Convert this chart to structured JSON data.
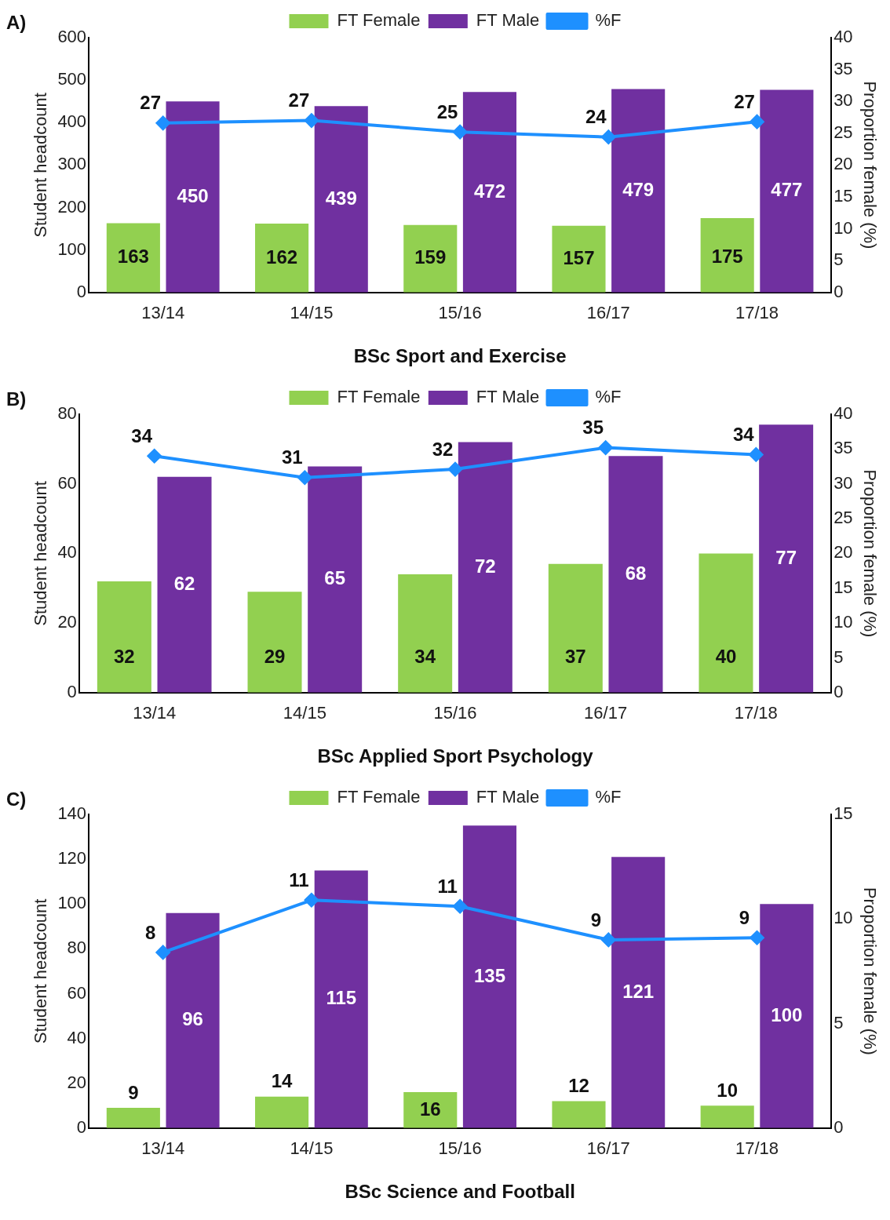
{
  "chart_data": [
    {
      "type": "bar",
      "annotations": [
        "A)"
      ],
      "xlabel": "BSc Sport and Exercise",
      "ylabel": "Student headcount",
      "y2label": "Proportion female (%)",
      "categories": [
        "13/14",
        "14/15",
        "15/16",
        "16/17",
        "17/18"
      ],
      "ylim": [
        0,
        600
      ],
      "yticks": [
        0,
        100,
        200,
        300,
        400,
        500,
        600
      ],
      "y2lim": [
        0,
        40
      ],
      "y2ticks": [
        0,
        5,
        10,
        15,
        20,
        25,
        30,
        35,
        40
      ],
      "data_labels": true,
      "legend": "top",
      "grid": false,
      "marker": "diamond",
      "line_style": "solid",
      "series": [
        {
          "name": "FT Female",
          "color": "#92d050",
          "values": [
            163,
            162,
            159,
            157,
            175
          ]
        },
        {
          "name": "FT Male",
          "color": "#7030a0",
          "values": [
            450,
            439,
            472,
            479,
            477
          ]
        },
        {
          "name": "%F",
          "type": "line",
          "axis": "y2",
          "color": "#1e90ff",
          "values": [
            26.6,
            27.0,
            25.2,
            24.4,
            26.8
          ],
          "value_labels": [
            "27",
            "27",
            "25",
            "24",
            "27"
          ]
        }
      ]
    },
    {
      "type": "bar",
      "annotations": [
        "B)"
      ],
      "xlabel": "BSc Applied Sport Psychology",
      "ylabel": "Student headcount",
      "y2label": "Proportion female (%)",
      "categories": [
        "13/14",
        "14/15",
        "15/16",
        "16/17",
        "17/18"
      ],
      "ylim": [
        0,
        80
      ],
      "yticks": [
        0,
        20,
        40,
        60,
        80
      ],
      "y2lim": [
        0,
        40
      ],
      "y2ticks": [
        0,
        5,
        10,
        15,
        20,
        25,
        30,
        35,
        40
      ],
      "data_labels": true,
      "legend": "top",
      "grid": false,
      "marker": "diamond",
      "line_style": "solid",
      "series": [
        {
          "name": "FT Female",
          "color": "#92d050",
          "values": [
            32,
            29,
            34,
            37,
            40
          ]
        },
        {
          "name": "FT Male",
          "color": "#7030a0",
          "values": [
            62,
            65,
            72,
            68,
            77
          ]
        },
        {
          "name": "%F",
          "type": "line",
          "axis": "y2",
          "color": "#1e90ff",
          "values": [
            34.0,
            30.9,
            32.1,
            35.2,
            34.2
          ],
          "value_labels": [
            "34",
            "31",
            "32",
            "35",
            "34"
          ]
        }
      ]
    },
    {
      "type": "bar",
      "annotations": [
        "C)"
      ],
      "xlabel": "BSc Science and Football",
      "ylabel": "Student headcount",
      "y2label": "Proportion female (%)",
      "categories": [
        "13/14",
        "14/15",
        "15/16",
        "16/17",
        "17/18"
      ],
      "ylim": [
        0,
        140
      ],
      "yticks": [
        0,
        20,
        40,
        60,
        80,
        100,
        120,
        140
      ],
      "y2lim": [
        0,
        15
      ],
      "y2ticks": [
        0,
        5,
        10,
        15
      ],
      "data_labels": true,
      "legend": "top",
      "grid": false,
      "marker": "diamond",
      "line_style": "solid",
      "series": [
        {
          "name": "FT Female",
          "color": "#92d050",
          "values": [
            9,
            14,
            16,
            12,
            10
          ]
        },
        {
          "name": "FT Male",
          "color": "#7030a0",
          "values": [
            96,
            115,
            135,
            121,
            100
          ]
        },
        {
          "name": "%F",
          "type": "line",
          "axis": "y2",
          "color": "#1e90ff",
          "values": [
            8.4,
            10.9,
            10.6,
            9.0,
            9.1
          ],
          "value_labels": [
            "8",
            "11",
            "11",
            "9",
            "9"
          ]
        }
      ]
    }
  ]
}
